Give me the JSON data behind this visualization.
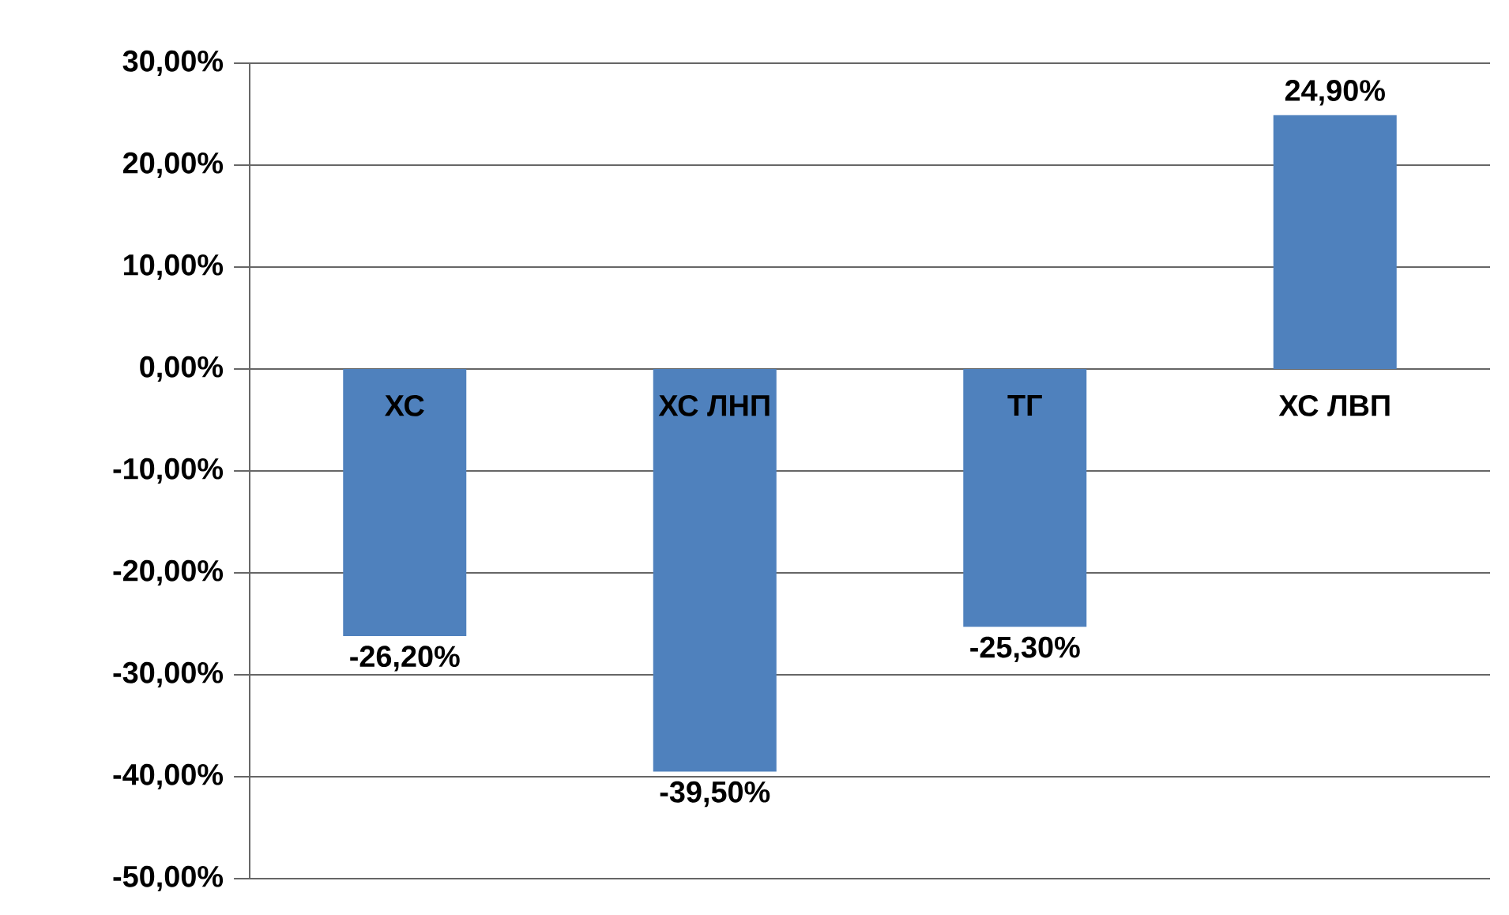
{
  "chart_data": {
    "type": "bar",
    "categories": [
      "ХС",
      "ХС ЛНП",
      "ТГ",
      "ХС ЛВП"
    ],
    "values": [
      -26.2,
      -39.5,
      -25.3,
      24.9
    ],
    "value_labels": [
      "-26,20%",
      "-39,50%",
      "-25,30%",
      "24,90%"
    ],
    "color": "#4f81bd",
    "ylim": [
      -50,
      30
    ],
    "yticks": [
      {
        "value": -50,
        "label": "-50,00%"
      },
      {
        "value": -40,
        "label": "-40,00%"
      },
      {
        "value": -30,
        "label": "-30,00%"
      },
      {
        "value": -20,
        "label": "-20,00%"
      },
      {
        "value": -10,
        "label": "-10,00%"
      },
      {
        "value": 0,
        "label": "0,00%"
      },
      {
        "value": 10,
        "label": "10,00%"
      },
      {
        "value": 20,
        "label": "20,00%"
      },
      {
        "value": 30,
        "label": "30,00%"
      }
    ],
    "grid": "y"
  }
}
